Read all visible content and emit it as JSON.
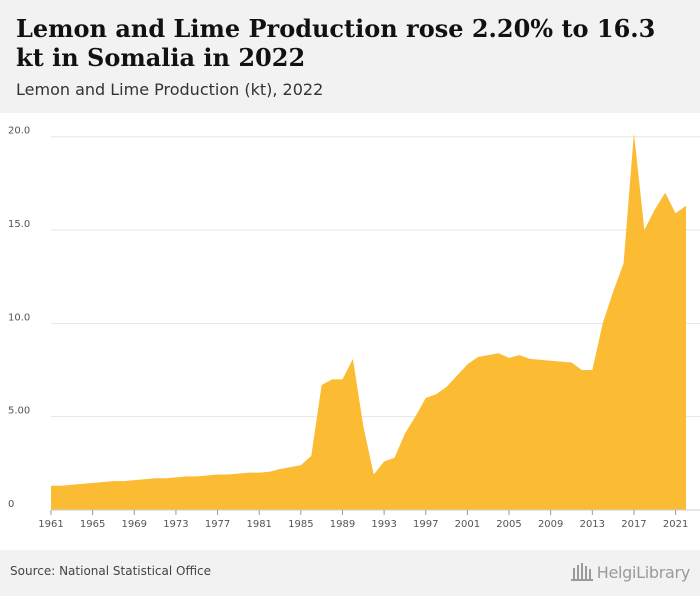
{
  "header": {
    "title": "Lemon and Lime Production rose 2.20% to 16.3 kt in Somalia in 2022",
    "subtitle": "Lemon and Lime Production (kt), 2022"
  },
  "footer": {
    "source": "Source: National Statistical Office",
    "logo_text": "HelgiLibrary"
  },
  "colors": {
    "area": "#fbbc34",
    "grid": "#e6e6e6"
  },
  "chart_data": {
    "type": "area",
    "x": [
      1961,
      1962,
      1963,
      1964,
      1965,
      1966,
      1967,
      1968,
      1969,
      1970,
      1971,
      1972,
      1973,
      1974,
      1975,
      1976,
      1977,
      1978,
      1979,
      1980,
      1981,
      1982,
      1983,
      1984,
      1985,
      1986,
      1987,
      1988,
      1989,
      1990,
      1991,
      1992,
      1993,
      1994,
      1995,
      1996,
      1997,
      1998,
      1999,
      2000,
      2001,
      2002,
      2003,
      2004,
      2005,
      2006,
      2007,
      2008,
      2009,
      2010,
      2011,
      2012,
      2013,
      2014,
      2015,
      2016,
      2017,
      2018,
      2019,
      2020,
      2021,
      2022
    ],
    "series": [
      {
        "values": [
          1.3,
          1.3,
          1.35,
          1.4,
          1.45,
          1.5,
          1.55,
          1.55,
          1.6,
          1.65,
          1.7,
          1.7,
          1.75,
          1.8,
          1.8,
          1.85,
          1.9,
          1.9,
          1.95,
          2.0,
          2.0,
          2.05,
          2.2,
          2.3,
          2.4,
          2.9,
          6.7,
          7.0,
          7.0,
          8.1,
          4.5,
          1.9,
          2.6,
          2.8,
          4.1,
          5.0,
          6.0,
          6.2,
          6.6,
          7.2,
          7.8,
          8.2,
          8.3,
          8.4,
          8.15,
          8.3,
          8.1,
          8.05,
          8.0,
          7.95,
          7.9,
          7.5,
          7.5,
          10.0,
          11.7,
          13.2,
          20.2,
          15.0,
          16.1,
          17.0,
          15.9,
          16.3
        ]
      }
    ],
    "x_ticks": [
      "1961",
      "1965",
      "1969",
      "1973",
      "1977",
      "1981",
      "1985",
      "1989",
      "1993",
      "1997",
      "2001",
      "2005",
      "2009",
      "2013",
      "2017",
      "2021"
    ],
    "y_ticks": [
      "0",
      "5.00",
      "10.0",
      "15.0",
      "20.0"
    ],
    "xlim": [
      1961,
      2022
    ],
    "ylim": [
      0,
      20.2
    ],
    "grid": true,
    "legend": "none"
  }
}
